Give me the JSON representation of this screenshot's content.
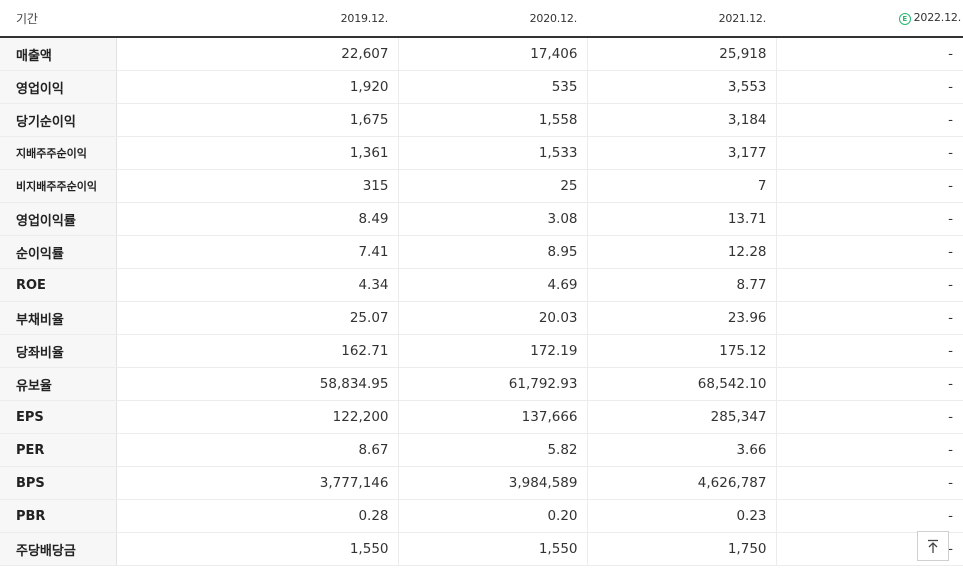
{
  "header": {
    "period_label": "기간",
    "years": [
      "2019.12.",
      "2020.12.",
      "2021.12."
    ],
    "estimate_year": "2022.12.",
    "estimate_badge": "E"
  },
  "rows": [
    {
      "label": "매출액",
      "values": [
        "22,607",
        "17,406",
        "25,918",
        "-"
      ]
    },
    {
      "label": "영업이익",
      "values": [
        "1,920",
        "535",
        "3,553",
        "-"
      ]
    },
    {
      "label": "당기순이익",
      "values": [
        "1,675",
        "1,558",
        "3,184",
        "-"
      ]
    },
    {
      "label": "지배주주순이익",
      "values": [
        "1,361",
        "1,533",
        "3,177",
        "-"
      ]
    },
    {
      "label": "비지배주주순이익",
      "values": [
        "315",
        "25",
        "7",
        "-"
      ]
    },
    {
      "label": "영업이익률",
      "values": [
        "8.49",
        "3.08",
        "13.71",
        "-"
      ]
    },
    {
      "label": "순이익률",
      "values": [
        "7.41",
        "8.95",
        "12.28",
        "-"
      ]
    },
    {
      "label": "ROE",
      "values": [
        "4.34",
        "4.69",
        "8.77",
        "-"
      ]
    },
    {
      "label": "부채비율",
      "values": [
        "25.07",
        "20.03",
        "23.96",
        "-"
      ]
    },
    {
      "label": "당좌비율",
      "values": [
        "162.71",
        "172.19",
        "175.12",
        "-"
      ]
    },
    {
      "label": "유보율",
      "values": [
        "58,834.95",
        "61,792.93",
        "68,542.10",
        "-"
      ]
    },
    {
      "label": "EPS",
      "values": [
        "122,200",
        "137,666",
        "285,347",
        "-"
      ]
    },
    {
      "label": "PER",
      "values": [
        "8.67",
        "5.82",
        "3.66",
        "-"
      ]
    },
    {
      "label": "BPS",
      "values": [
        "3,777,146",
        "3,984,589",
        "4,626,787",
        "-"
      ]
    },
    {
      "label": "PBR",
      "values": [
        "0.28",
        "0.20",
        "0.23",
        "-"
      ]
    },
    {
      "label": "주당배당금",
      "values": [
        "1,550",
        "1,550",
        "1,750",
        "-"
      ]
    }
  ],
  "icons": {
    "scroll_top": "arrow-up-to-top-icon"
  },
  "colors": {
    "estimate_accent": "#2bb673",
    "header_rule": "#333333",
    "label_bg": "#f7f7f7"
  }
}
